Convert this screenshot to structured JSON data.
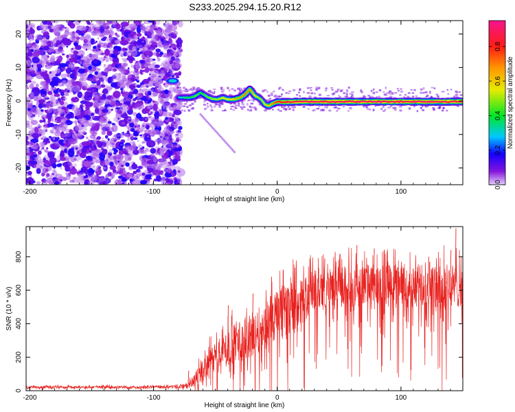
{
  "title": "S233.2025.294.15.20.R12",
  "chart_data": [
    {
      "type": "heatmap",
      "xlabel": "Height of straight line (km)",
      "ylabel": "Frequency (Hz)",
      "xlim": [
        -203,
        150
      ],
      "ylim": [
        -25,
        24
      ],
      "xticks": [
        -200,
        -100,
        0,
        100
      ],
      "yticks": [
        -20,
        -10,
        0,
        10,
        20
      ],
      "noise_region_x": [
        -203,
        -78
      ],
      "ridge": {
        "x": [
          -87,
          -82,
          -80,
          -75,
          -70,
          -66,
          -62,
          -58,
          -52,
          -48,
          -44,
          -40,
          -35,
          -30,
          -26,
          -22,
          -20,
          -18,
          -15,
          -12,
          -10,
          -7,
          -5,
          0,
          10,
          20,
          30,
          40,
          50,
          60,
          70,
          80,
          90,
          100,
          110,
          120,
          130,
          140,
          150
        ],
        "freq_hz": [
          6,
          6,
          1,
          1,
          1,
          1.5,
          2.5,
          1.5,
          0.5,
          0.5,
          1,
          0.5,
          0.5,
          1,
          2,
          3.5,
          2.5,
          1.5,
          1,
          0,
          -1,
          -1.5,
          -1,
          -0.3,
          -0.3,
          -0.2,
          -0.2,
          -0.2,
          -0.2,
          -0.2,
          -0.2,
          -0.2,
          -0.2,
          -0.2,
          -0.2,
          -0.2,
          -0.2,
          -0.2,
          -0.2
        ],
        "amplitude": [
          0.2,
          0.2,
          0.3,
          0.35,
          0.4,
          0.45,
          0.4,
          0.45,
          0.5,
          0.5,
          0.55,
          0.55,
          0.6,
          0.65,
          0.7,
          0.65,
          0.6,
          0.55,
          0.5,
          0.5,
          0.55,
          0.6,
          0.65,
          0.8,
          0.85,
          0.9,
          0.9,
          0.88,
          0.9,
          0.88,
          0.9,
          0.92,
          0.9,
          0.88,
          0.9,
          0.92,
          0.9,
          0.88,
          0.9
        ]
      },
      "colorbar": {
        "label": "Normalized spectral amplitude",
        "range": [
          0.0,
          0.95
        ],
        "ticks": [
          0.0,
          0.2,
          0.4,
          0.6,
          0.8
        ],
        "tick_labels": [
          "0.0",
          "0.2",
          "0.4",
          "0.6",
          "0.8"
        ]
      }
    },
    {
      "type": "line",
      "xlabel": "Height of straight line (km)",
      "ylabel": "SNR (10 * v/v)",
      "xlim": [
        -203,
        150
      ],
      "ylim": [
        0,
        980
      ],
      "xticks": [
        -200,
        -100,
        0,
        100
      ],
      "yticks": [
        0,
        200,
        400,
        600,
        800
      ],
      "series": [
        {
          "name": "SNR",
          "color": "#e8211e",
          "x": [
            -203,
            -180,
            -160,
            -140,
            -120,
            -100,
            -90,
            -80,
            -75,
            -70,
            -65,
            -60,
            -55,
            -50,
            -45,
            -40,
            -35,
            -30,
            -25,
            -20,
            -15,
            -10,
            -5,
            0,
            5,
            10,
            15,
            20,
            25,
            30,
            40,
            50,
            60,
            70,
            80,
            90,
            100,
            110,
            120,
            130,
            140,
            150
          ],
          "mean": [
            20,
            22,
            20,
            22,
            20,
            22,
            22,
            24,
            26,
            40,
            80,
            120,
            170,
            200,
            240,
            260,
            290,
            300,
            310,
            340,
            360,
            380,
            420,
            440,
            460,
            470,
            500,
            530,
            560,
            600,
            620,
            620,
            630,
            620,
            630,
            640,
            620,
            610,
            640,
            600,
            620,
            630
          ],
          "spread": [
            8,
            10,
            8,
            10,
            8,
            10,
            10,
            12,
            14,
            30,
            60,
            80,
            100,
            110,
            120,
            130,
            140,
            150,
            150,
            160,
            170,
            180,
            190,
            200,
            200,
            200,
            200,
            180,
            170,
            150,
            130,
            150,
            160,
            170,
            160,
            150,
            160,
            170,
            180,
            190,
            170,
            160
          ],
          "peaks": [
            [
              -72,
              120
            ],
            [
              -40,
              510
            ],
            [
              -20,
              580
            ],
            [
              -5,
              680
            ],
            [
              38,
              790
            ],
            [
              64,
              870
            ],
            [
              78,
              850
            ],
            [
              100,
              770
            ],
            [
              122,
              800
            ],
            [
              140,
              840
            ],
            [
              144,
              970
            ]
          ]
        }
      ]
    }
  ]
}
